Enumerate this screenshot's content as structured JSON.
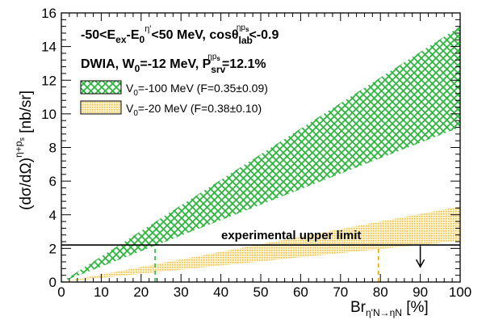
{
  "chart_data": {
    "type": "area",
    "xlabel": "Br",
    "xlabel_subscript": "η'N→ηN",
    "xlabel_unit": "[%]",
    "ylabel": "(dσ/dΩ)",
    "ylabel_superscript": "η+p",
    "ylabel_sup_subscript": "s",
    "ylabel_unit": "[nb/sr]",
    "xlim": [
      0,
      100
    ],
    "ylim": [
      0,
      16
    ],
    "x_ticks": [
      0,
      10,
      20,
      30,
      40,
      50,
      60,
      70,
      80,
      90,
      100
    ],
    "y_ticks": [
      0,
      2,
      4,
      6,
      8,
      10,
      12,
      14,
      16
    ],
    "grid": false,
    "annotations": {
      "line1": {
        "a": "-50<E",
        "b": "ex",
        "c": "-E",
        "d": "0",
        "e": "η'",
        "f": "<50 MeV, cosθ",
        "g": "lab",
        "h": "ηp",
        "i": "s",
        "j": "<-0.9"
      },
      "line2": {
        "a": "DWIA, W",
        "b": "0",
        "c": "=-12 MeV, P",
        "d": "srv",
        "e": "ηp",
        "f": "s",
        "g": "=12.1%"
      }
    },
    "series": [
      {
        "name": "V0=-100 MeV (F=0.35±0.09)",
        "legend_label": {
          "prefix": "V",
          "sub": "0",
          "rest": "=-100 MeV (F=0.35±0.09)"
        },
        "pattern": "crosshatch",
        "color": "#2db83d",
        "x": [
          0,
          100
        ],
        "lower": [
          0,
          9.2
        ],
        "upper": [
          0,
          15.2
        ],
        "crossing_x": 23.5
      },
      {
        "name": "V0=-20 MeV (F=0.38±0.10)",
        "legend_label": {
          "prefix": "V",
          "sub": "0",
          "rest": "=-20 MeV (F=0.38±0.10)"
        },
        "pattern": "dots",
        "color": "#f0c040",
        "x": [
          0,
          100
        ],
        "lower": [
          0,
          2.45
        ],
        "upper": [
          0,
          4.5
        ],
        "crossing_x": 79.5
      }
    ],
    "upper_limit": {
      "label": "experimental upper limit",
      "y": 2.2,
      "arrow_x": 90
    }
  }
}
